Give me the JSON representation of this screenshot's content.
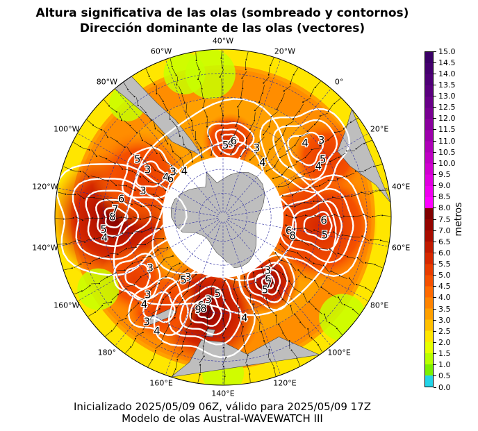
{
  "title_line1": "Altura significativa de las olas (sombreado y contornos)",
  "title_line2": "Dirección dominante de las olas (vectores)",
  "lon_labels": [
    "40°W",
    "20°W",
    "0°",
    "20°E",
    "40°E",
    "60°E",
    "80°E",
    "100°E",
    "120°E",
    "140°E",
    "160°E",
    "180°",
    "160°W",
    "140°W",
    "120°W",
    "100°W",
    "80°W",
    "60°W"
  ],
  "colorbar": {
    "label": "metros",
    "ticks": [
      "0.0",
      "0.5",
      "1.0",
      "1.5",
      "2.0",
      "2.5",
      "3.0",
      "3.5",
      "4.0",
      "4.5",
      "5.0",
      "5.5",
      "6.0",
      "6.5",
      "7.0",
      "7.5",
      "8.0",
      "8.5",
      "9.0",
      "9.5",
      "10.0",
      "10.5",
      "11.0",
      "11.5",
      "12.0",
      "12.5",
      "13.0",
      "13.5",
      "14.0",
      "14.5",
      "15.0"
    ],
    "colors": [
      "#22d4e8",
      "#7cf000",
      "#b8ff00",
      "#e6ff00",
      "#ffe600",
      "#ffc000",
      "#ffa000",
      "#ff8400",
      "#ff6a00",
      "#f55000",
      "#e83c00",
      "#d62800",
      "#c01a00",
      "#a80c00",
      "#940400",
      "#800000",
      "#ff00ff",
      "#f000f0",
      "#e000e0",
      "#d000d0",
      "#bf00c4",
      "#ae00b8",
      "#9c00ab",
      "#8a009e",
      "#780092",
      "#680088",
      "#5a007e",
      "#4e0076",
      "#44006e",
      "#3a0066"
    ]
  },
  "contour_labels": [
    {
      "text": "8",
      "lon": -130,
      "lat": -44
    },
    {
      "text": "7",
      "lon": -126,
      "lat": -45
    },
    {
      "text": "6",
      "lon": -120,
      "lat": -47
    },
    {
      "text": "5",
      "lon": -136,
      "lat": -40
    },
    {
      "text": "4",
      "lon": -140,
      "lat": -40
    },
    {
      "text": "3",
      "lon": -112,
      "lat": -55
    },
    {
      "text": "3",
      "lon": -98,
      "lat": -53
    },
    {
      "text": "5",
      "lon": -96,
      "lat": -47
    },
    {
      "text": "4",
      "lon": -95,
      "lat": -61
    },
    {
      "text": "6",
      "lon": -94,
      "lat": -63
    },
    {
      "text": "3",
      "lon": -88,
      "lat": -62
    },
    {
      "text": "4",
      "lon": -80,
      "lat": -65
    },
    {
      "text": "4",
      "lon": -34,
      "lat": -59
    },
    {
      "text": "6",
      "lon": -32,
      "lat": -58
    },
    {
      "text": "5",
      "lon": -38,
      "lat": -60
    },
    {
      "text": "3",
      "lon": -14,
      "lat": -58
    },
    {
      "text": "4",
      "lon": -4,
      "lat": -62
    },
    {
      "text": "4",
      "lon": 8,
      "lat": -44
    },
    {
      "text": "3",
      "lon": 12,
      "lat": -38
    },
    {
      "text": "5",
      "lon": 20,
      "lat": -42
    },
    {
      "text": "4",
      "lon": 22,
      "lat": -45
    },
    {
      "text": "6",
      "lon": 52,
      "lat": -48
    },
    {
      "text": "5",
      "lon": 60,
      "lat": -47
    },
    {
      "text": "6",
      "lon": 62,
      "lat": -62
    },
    {
      "text": "8",
      "lon": 65,
      "lat": -60
    },
    {
      "text": "3",
      "lon": 100,
      "lat": -61
    },
    {
      "text": "6",
      "lon": 104,
      "lat": -58
    },
    {
      "text": "7",
      "lon": 106,
      "lat": -56
    },
    {
      "text": "5",
      "lon": 110,
      "lat": -55
    },
    {
      "text": "3",
      "lon": 150,
      "lat": -55
    },
    {
      "text": "5",
      "lon": 144,
      "lat": -58
    },
    {
      "text": "6",
      "lon": 154,
      "lat": -52
    },
    {
      "text": "9",
      "lon": 155,
      "lat": -50
    },
    {
      "text": "8",
      "lon": 152,
      "lat": -51
    },
    {
      "text": "4",
      "lon": 128,
      "lat": -47
    },
    {
      "text": "3",
      "lon": 170,
      "lat": -61
    },
    {
      "text": "5",
      "lon": 172,
      "lat": -59
    },
    {
      "text": "3",
      "lon": -165,
      "lat": -53
    },
    {
      "text": "3",
      "lon": -176,
      "lat": -45
    },
    {
      "text": "4",
      "lon": -178,
      "lat": -41
    },
    {
      "text": "3",
      "lon": 176,
      "lat": -36
    },
    {
      "text": "4",
      "lon": 170,
      "lat": -35
    }
  ],
  "footer_line1": "Inicializado 2025/05/09 06Z, válido para 2025/05/09 17Z",
  "footer_line2": "Modelo de olas Austral-WAVEWATCH III"
}
